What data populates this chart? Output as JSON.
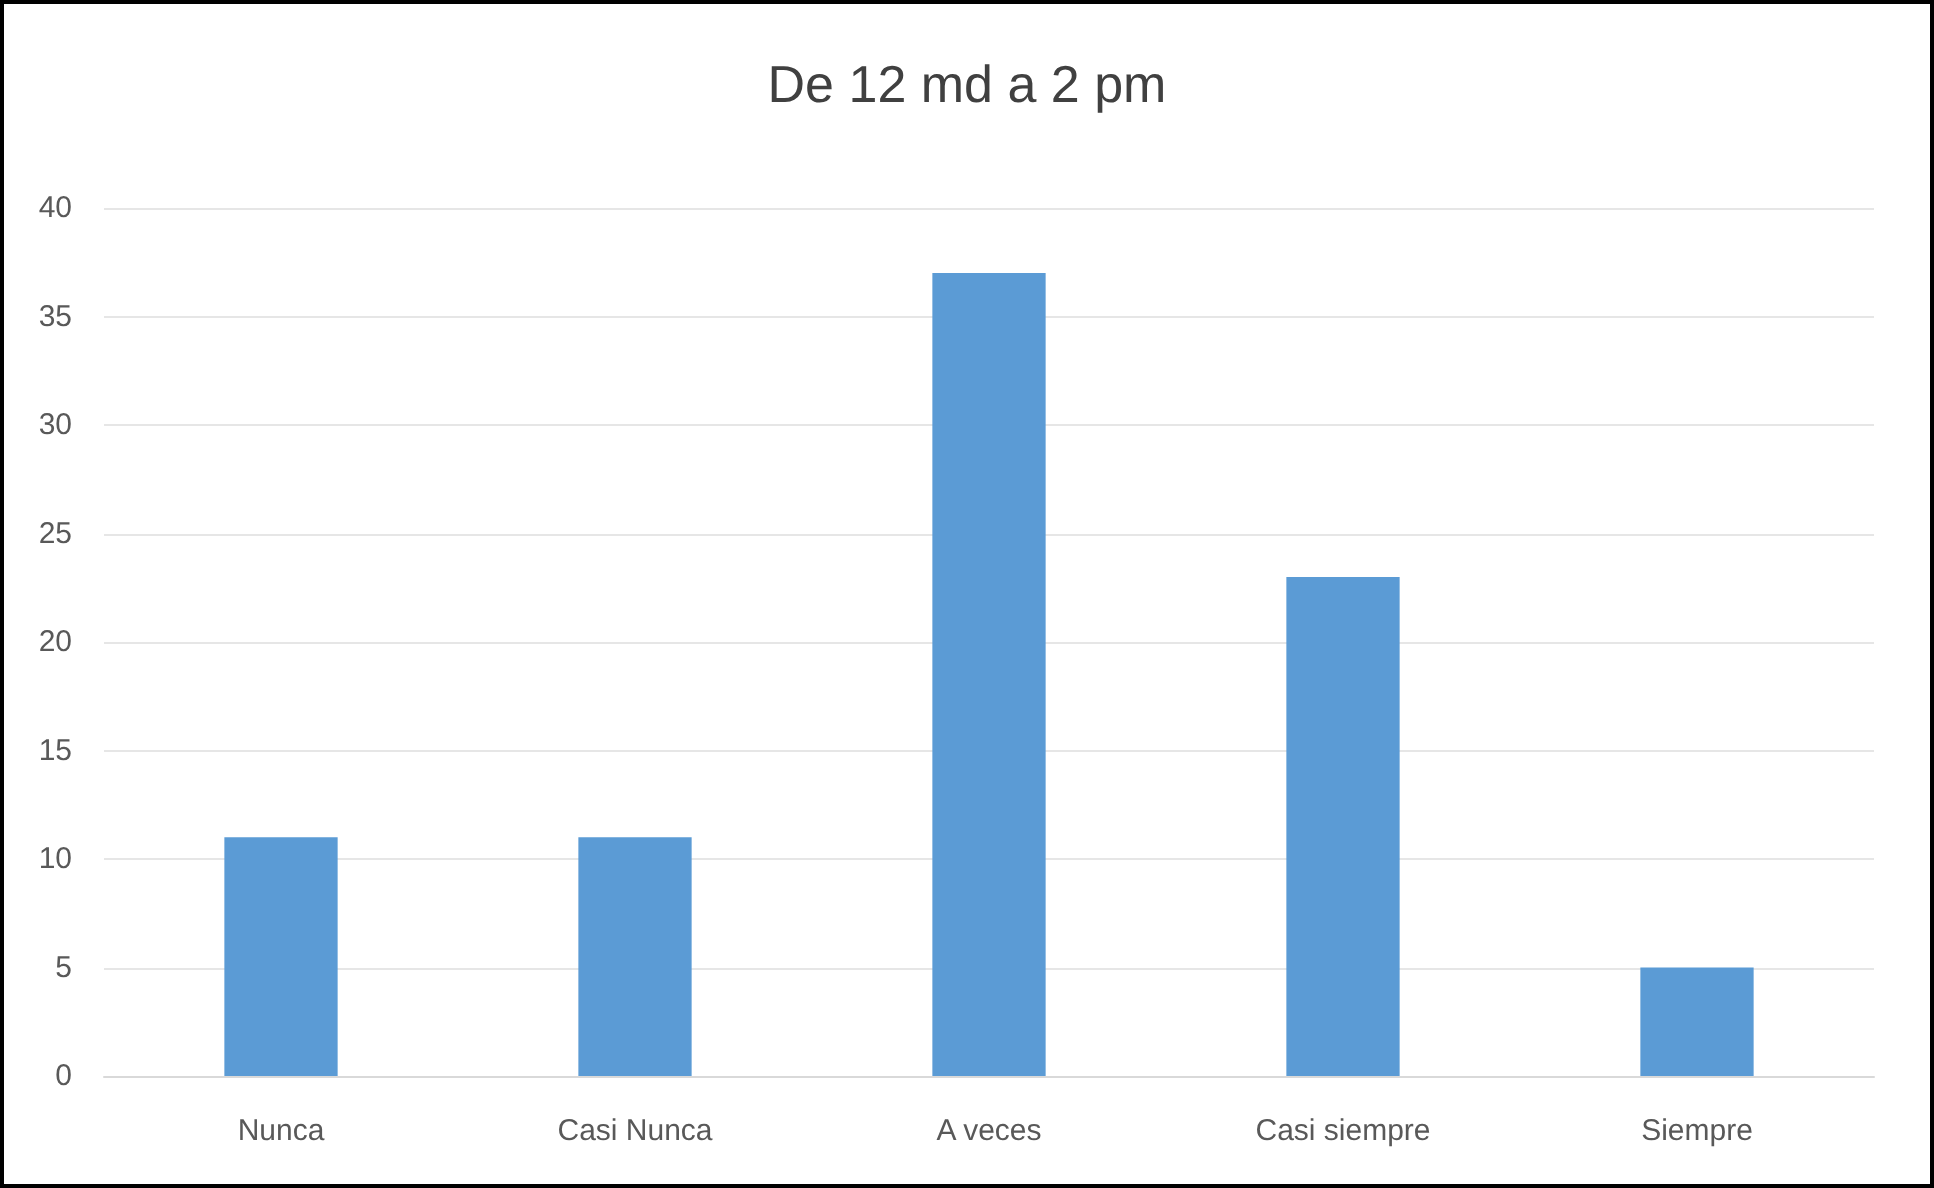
{
  "chart_data": {
    "type": "bar",
    "title": "De 12 md a 2 pm",
    "categories": [
      "Nunca",
      "Casi Nunca",
      "A veces",
      "Casi siempre",
      "Siempre"
    ],
    "values": [
      11,
      11,
      37,
      23,
      5
    ],
    "color": "#5b9bd5",
    "ylim": [
      0,
      40
    ],
    "yticks": [
      0,
      5,
      10,
      15,
      20,
      25,
      30,
      35,
      40
    ],
    "grid": "y"
  }
}
